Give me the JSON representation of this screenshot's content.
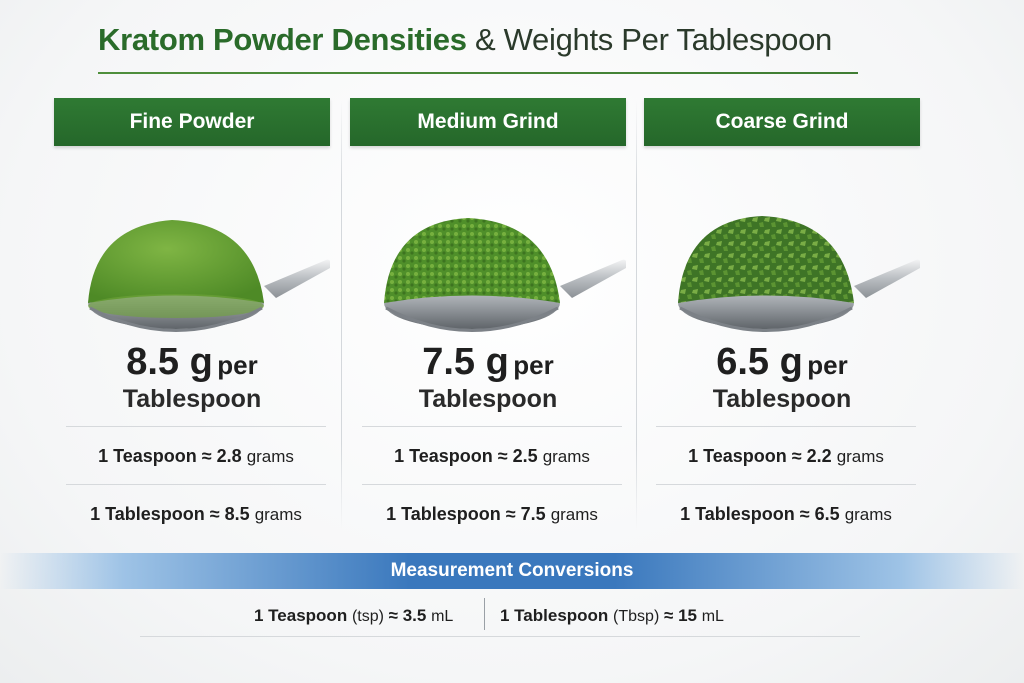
{
  "title": {
    "bold": "Kratom Powder Densities",
    "rest": " & Weights Per Tablespoon"
  },
  "columns": [
    {
      "header": "Fine Powder",
      "weight_value": "8.5 g",
      "weight_per": "per",
      "weight_unit": "Tablespoon",
      "teaspoon_label": "1 Teaspoon ≈ 2.8",
      "teaspoon_unit": "grams",
      "tablespoon_label": "1 Tablespoon ≈ 8.5",
      "tablespoon_unit": "grams",
      "powder_color": "#5c9a2e",
      "icon": "spoon-fine-powder-icon"
    },
    {
      "header": "Medium Grind",
      "weight_value": "7.5 g",
      "weight_per": "per",
      "weight_unit": "Tablespoon",
      "teaspoon_label": "1 Teaspoon ≈ 2.5",
      "teaspoon_unit": "grams",
      "tablespoon_label": "1 Tablespoon ≈ 7.5",
      "tablespoon_unit": "grams",
      "powder_color": "#4f8f2a",
      "icon": "spoon-medium-grind-icon"
    },
    {
      "header": "Coarse Grind",
      "weight_value": "6.5 g",
      "weight_per": "per",
      "weight_unit": "Tablespoon",
      "teaspoon_label": "1 Teaspoon ≈ 2.2",
      "teaspoon_unit": "grams",
      "tablespoon_label": "1 Tablespoon ≈ 6.5",
      "tablespoon_unit": "grams",
      "powder_color": "#4a8530",
      "icon": "spoon-coarse-grind-icon"
    }
  ],
  "conversions": {
    "heading": "Measurement Conversions",
    "teaspoon_a": "1 Teaspoon",
    "teaspoon_b": "(tsp)",
    "teaspoon_c": "≈ 3.5",
    "teaspoon_d": "mL",
    "tablespoon_a": "1 Tablespoon",
    "tablespoon_b": "(Tbsp)",
    "tablespoon_c": "≈ 15",
    "tablespoon_d": "mL"
  },
  "colors": {
    "header_green": "#2f7a33",
    "title_green": "#2a6b2a",
    "band_blue": "#3a78bd"
  }
}
